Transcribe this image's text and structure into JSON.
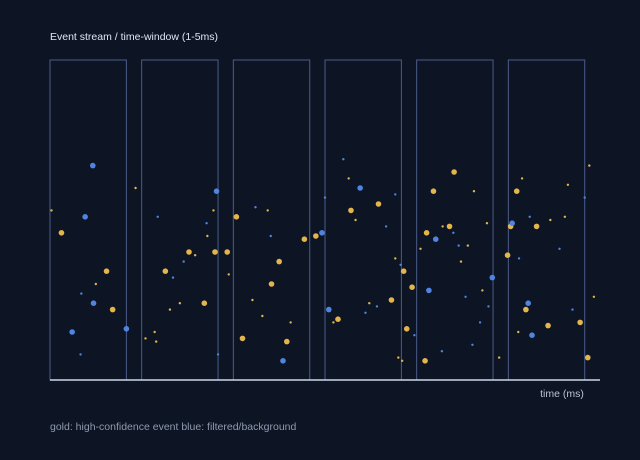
{
  "chart_data": {
    "type": "scatter",
    "title": "Event stream / time-window (1-5ms)",
    "xlabel": "time (ms)",
    "caption": "gold: high-confidence event  blue: filtered/background",
    "windows": [
      {
        "start": 0.0,
        "end": 1.0
      },
      {
        "start": 1.2,
        "end": 2.2
      },
      {
        "start": 2.4,
        "end": 3.4
      },
      {
        "start": 3.6,
        "end": 4.6
      },
      {
        "start": 4.8,
        "end": 5.8
      },
      {
        "start": 6.0,
        "end": 7.0
      }
    ],
    "xlim": [
      0,
      7.2
    ],
    "ylim": [
      0,
      1
    ],
    "series": [
      {
        "kind": "high-confidence",
        "color": "#e3b54a",
        "points": [
          [
            0.15,
            0.46,
            2
          ],
          [
            0.74,
            0.34,
            2
          ],
          [
            0.82,
            0.22,
            2
          ],
          [
            0.6,
            0.3,
            1
          ],
          [
            1.12,
            0.6,
            1
          ],
          [
            0.02,
            0.53,
            1
          ],
          [
            1.25,
            0.13,
            1
          ],
          [
            1.37,
            0.15,
            1
          ],
          [
            1.39,
            0.12,
            1
          ],
          [
            1.51,
            0.34,
            2
          ],
          [
            1.57,
            0.22,
            1
          ],
          [
            1.7,
            0.24,
            1
          ],
          [
            1.82,
            0.4,
            2
          ],
          [
            1.9,
            0.39,
            1
          ],
          [
            2.14,
            0.53,
            1
          ],
          [
            2.16,
            0.4,
            2
          ],
          [
            2.02,
            0.24,
            2
          ],
          [
            2.06,
            0.45,
            1
          ],
          [
            2.32,
            0.4,
            2
          ],
          [
            2.44,
            0.51,
            2
          ],
          [
            2.34,
            0.33,
            1
          ],
          [
            2.52,
            0.13,
            2
          ],
          [
            2.65,
            0.25,
            1
          ],
          [
            2.78,
            0.2,
            1
          ],
          [
            2.85,
            0.53,
            1
          ],
          [
            2.9,
            0.3,
            2
          ],
          [
            3.0,
            0.37,
            2
          ],
          [
            3.15,
            0.18,
            1
          ],
          [
            3.1,
            0.12,
            2
          ],
          [
            3.33,
            0.44,
            2
          ],
          [
            3.48,
            0.45,
            2
          ],
          [
            3.71,
            0.18,
            1
          ],
          [
            3.77,
            0.19,
            2
          ],
          [
            3.94,
            0.53,
            2
          ],
          [
            3.91,
            0.63,
            1
          ],
          [
            4.0,
            0.5,
            1
          ],
          [
            4.18,
            0.24,
            1
          ],
          [
            4.3,
            0.55,
            2
          ],
          [
            4.47,
            0.25,
            2
          ],
          [
            4.61,
            0.06,
            1
          ],
          [
            4.67,
            0.16,
            2
          ],
          [
            4.63,
            0.34,
            2
          ],
          [
            4.52,
            0.38,
            1
          ],
          [
            4.56,
            0.07,
            1
          ],
          [
            4.74,
            0.29,
            2
          ],
          [
            4.93,
            0.46,
            2
          ],
          [
            4.85,
            0.41,
            1
          ],
          [
            4.91,
            0.06,
            2
          ],
          [
            5.02,
            0.59,
            2
          ],
          [
            5.14,
            0.48,
            1
          ],
          [
            5.23,
            0.48,
            2
          ],
          [
            5.29,
            0.65,
            2
          ],
          [
            5.38,
            0.37,
            1
          ],
          [
            5.47,
            0.42,
            1
          ],
          [
            5.55,
            0.59,
            1
          ],
          [
            5.66,
            0.28,
            1
          ],
          [
            5.72,
            0.49,
            1
          ],
          [
            5.88,
            0.07,
            1
          ],
          [
            5.99,
            0.39,
            2
          ],
          [
            6.03,
            0.48,
            2
          ],
          [
            6.13,
            0.15,
            1
          ],
          [
            6.23,
            0.22,
            2
          ],
          [
            6.11,
            0.59,
            2
          ],
          [
            6.18,
            0.63,
            1
          ],
          [
            6.37,
            0.48,
            2
          ],
          [
            6.55,
            0.5,
            1
          ],
          [
            6.52,
            0.17,
            2
          ],
          [
            6.74,
            0.51,
            1
          ],
          [
            6.78,
            0.61,
            1
          ],
          [
            6.94,
            0.18,
            2
          ],
          [
            7.04,
            0.07,
            2
          ],
          [
            7.06,
            0.67,
            1
          ],
          [
            7.12,
            0.26,
            1
          ]
        ]
      },
      {
        "kind": "filtered/background",
        "color": "#4f84e0",
        "points": [
          [
            0.56,
            0.67,
            2
          ],
          [
            0.46,
            0.51,
            2
          ],
          [
            0.29,
            0.15,
            2
          ],
          [
            0.4,
            0.08,
            1
          ],
          [
            0.57,
            0.24,
            2
          ],
          [
            0.41,
            0.27,
            1
          ],
          [
            1.0,
            0.16,
            2
          ],
          [
            1.41,
            0.51,
            1
          ],
          [
            1.61,
            0.32,
            1
          ],
          [
            1.75,
            0.37,
            1
          ],
          [
            2.18,
            0.59,
            2
          ],
          [
            2.05,
            0.49,
            1
          ],
          [
            2.2,
            0.08,
            1
          ],
          [
            2.69,
            0.54,
            1
          ],
          [
            2.89,
            0.45,
            1
          ],
          [
            3.05,
            0.06,
            2
          ],
          [
            3.56,
            0.46,
            2
          ],
          [
            3.65,
            0.22,
            2
          ],
          [
            3.84,
            0.69,
            1
          ],
          [
            3.6,
            0.57,
            1
          ],
          [
            4.06,
            0.6,
            2
          ],
          [
            4.13,
            0.21,
            1
          ],
          [
            4.28,
            0.23,
            1
          ],
          [
            4.52,
            0.58,
            1
          ],
          [
            4.4,
            0.48,
            1
          ],
          [
            4.59,
            0.36,
            1
          ],
          [
            4.77,
            0.14,
            1
          ],
          [
            4.96,
            0.28,
            2
          ],
          [
            5.05,
            0.44,
            2
          ],
          [
            5.13,
            0.09,
            1
          ],
          [
            5.28,
            0.46,
            1
          ],
          [
            5.35,
            0.42,
            1
          ],
          [
            5.44,
            0.26,
            1
          ],
          [
            5.53,
            0.11,
            1
          ],
          [
            5.63,
            0.18,
            1
          ],
          [
            5.74,
            0.23,
            1
          ],
          [
            5.79,
            0.32,
            2
          ],
          [
            6.05,
            0.49,
            2
          ],
          [
            6.14,
            0.38,
            1
          ],
          [
            6.28,
            0.51,
            1
          ],
          [
            6.26,
            0.24,
            2
          ],
          [
            6.31,
            0.14,
            2
          ],
          [
            6.67,
            0.41,
            1
          ],
          [
            6.84,
            0.22,
            1
          ],
          [
            7.0,
            0.57,
            1
          ]
        ]
      }
    ]
  }
}
